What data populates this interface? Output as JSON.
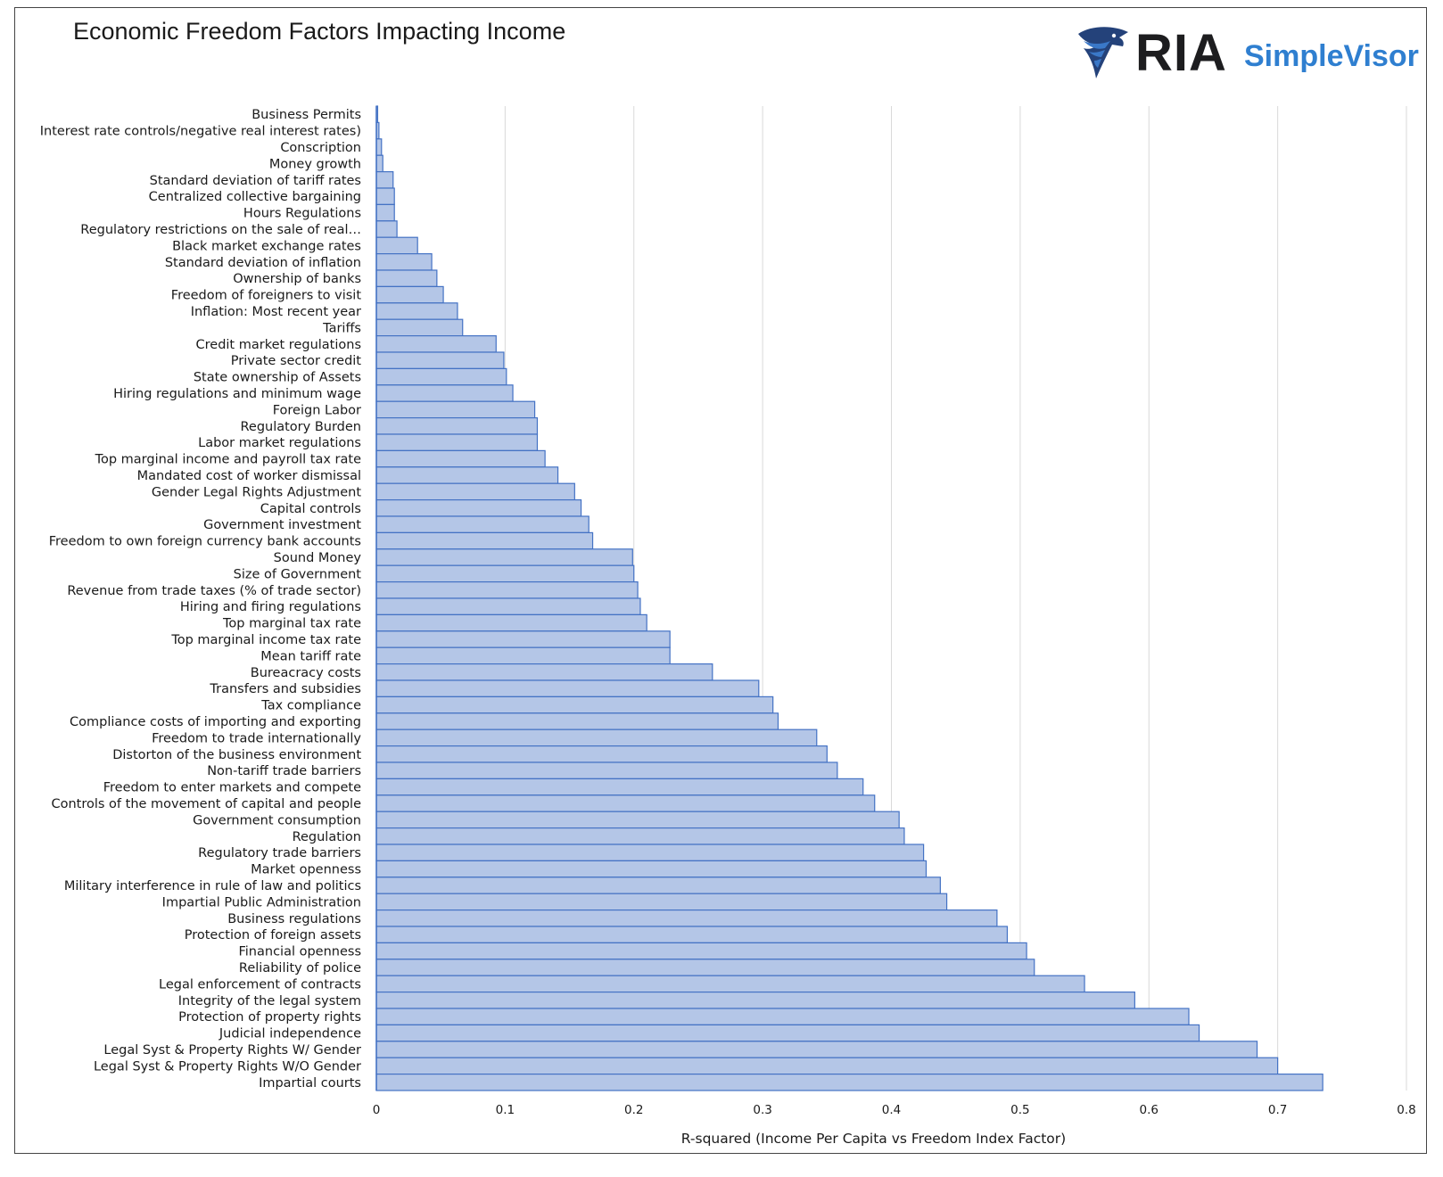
{
  "title": "Economic Freedom Factors Impacting Income",
  "logo": {
    "brand": "RIA",
    "product": "SimpleVisor",
    "icon": "eagle-head-icon",
    "brand_color": "#1d1d1f",
    "product_color": "#2f7fd0"
  },
  "chart_data": {
    "type": "bar",
    "orientation": "horizontal",
    "bar_fill": "#b4c6e7",
    "bar_stroke": "#4472c4",
    "grid": true,
    "legend": "none",
    "xlabel": "R-squared (Income Per Capita vs Freedom Index Factor)",
    "xlim": [
      0,
      0.8
    ],
    "xticks": [
      "0",
      "0.1",
      "0.2",
      "0.3",
      "0.4",
      "0.5",
      "0.6",
      "0.7",
      "0.8"
    ],
    "categories": [
      "Business Permits",
      "Interest rate controls/negative real interest rates)",
      "Conscription",
      "Money growth",
      "Standard deviation of tariff rates",
      "Centralized collective bargaining",
      "Hours Regulations",
      "Regulatory restrictions on the sale of real…",
      "Black market exchange rates",
      "Standard deviation of inflation",
      "Ownership of banks",
      "Freedom of foreigners to visit",
      "Inflation: Most recent year",
      "Tariffs",
      "Credit market regulations",
      "Private sector credit",
      "State ownership of Assets",
      "Hiring regulations and minimum wage",
      "Foreign Labor",
      "Regulatory Burden",
      "Labor market regulations",
      "Top marginal income and payroll tax rate",
      "Mandated cost of worker dismissal",
      "Gender Legal Rights Adjustment",
      "Capital controls",
      "Government investment",
      "Freedom to own foreign currency bank accounts",
      "Sound Money",
      "Size of Government",
      "Revenue from trade taxes (% of trade sector)",
      "Hiring and firing regulations",
      "Top marginal tax rate",
      "Top marginal income tax rate",
      "Mean tariff rate",
      "Bureacracy costs",
      "Transfers and subsidies",
      "Tax compliance",
      "Compliance costs of importing and exporting",
      "Freedom to trade internationally",
      "Distorton of the business environment",
      "Non-tariff trade barriers",
      "Freedom to enter markets and compete",
      "Controls of the movement of capital and people",
      "Government consumption",
      "Regulation",
      "Regulatory trade barriers",
      "Market openness",
      "Military interference in rule of law and politics",
      "Impartial Public Administration",
      "Business regulations",
      "Protection of foreign assets",
      "Financial openness",
      "Reliability of police",
      "Legal enforcement of contracts",
      "Integrity of the legal system",
      "Protection of property rights",
      "Judicial independence",
      "Legal Syst & Property Rights W/ Gender",
      "Legal Syst & Property Rights W/O Gender",
      "Impartial courts"
    ],
    "values": [
      0.001,
      0.002,
      0.004,
      0.005,
      0.013,
      0.014,
      0.014,
      0.016,
      0.032,
      0.043,
      0.047,
      0.052,
      0.063,
      0.067,
      0.093,
      0.099,
      0.101,
      0.106,
      0.123,
      0.125,
      0.125,
      0.131,
      0.141,
      0.154,
      0.159,
      0.165,
      0.168,
      0.199,
      0.2,
      0.203,
      0.205,
      0.21,
      0.228,
      0.228,
      0.261,
      0.297,
      0.308,
      0.312,
      0.342,
      0.35,
      0.358,
      0.378,
      0.387,
      0.406,
      0.41,
      0.425,
      0.427,
      0.438,
      0.443,
      0.482,
      0.49,
      0.505,
      0.511,
      0.55,
      0.589,
      0.631,
      0.639,
      0.684,
      0.7,
      0.735
    ]
  }
}
